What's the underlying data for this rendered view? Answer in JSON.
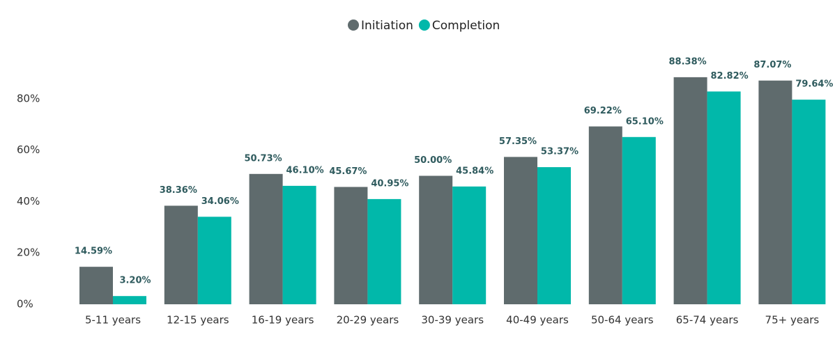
{
  "chart_data": {
    "type": "bar",
    "categories": [
      "5-11 years",
      "12-15 years",
      "16-19 years",
      "20-29 years",
      "30-39 years",
      "40-49 years",
      "50-64 years",
      "65-74 years",
      "75+ years"
    ],
    "series": [
      {
        "name": "Initiation",
        "color": "#5f6b6d",
        "values": [
          14.59,
          38.36,
          50.73,
          45.67,
          50.0,
          57.35,
          69.22,
          88.38,
          87.07
        ],
        "value_labels": [
          "14.59%",
          "38.36%",
          "50.73%",
          "45.67%",
          "50.00%",
          "57.35%",
          "69.22%",
          "88.38%",
          "87.07%"
        ]
      },
      {
        "name": "Completion",
        "color": "#01b8aa",
        "values": [
          3.2,
          34.06,
          46.1,
          40.95,
          45.84,
          53.37,
          65.1,
          82.82,
          79.64
        ],
        "value_labels": [
          "3.20%",
          "34.06%",
          "46.10%",
          "40.95%",
          "45.84%",
          "53.37%",
          "65.10%",
          "82.82%",
          "79.64%"
        ]
      }
    ],
    "ylim": [
      0,
      100
    ],
    "yticks": [
      {
        "value": 0,
        "label": "0%"
      },
      {
        "value": 20,
        "label": "20%"
      },
      {
        "value": 40,
        "label": "40%"
      },
      {
        "value": 60,
        "label": "60%"
      },
      {
        "value": 80,
        "label": "80%"
      }
    ],
    "grid": false,
    "legend": "top"
  }
}
